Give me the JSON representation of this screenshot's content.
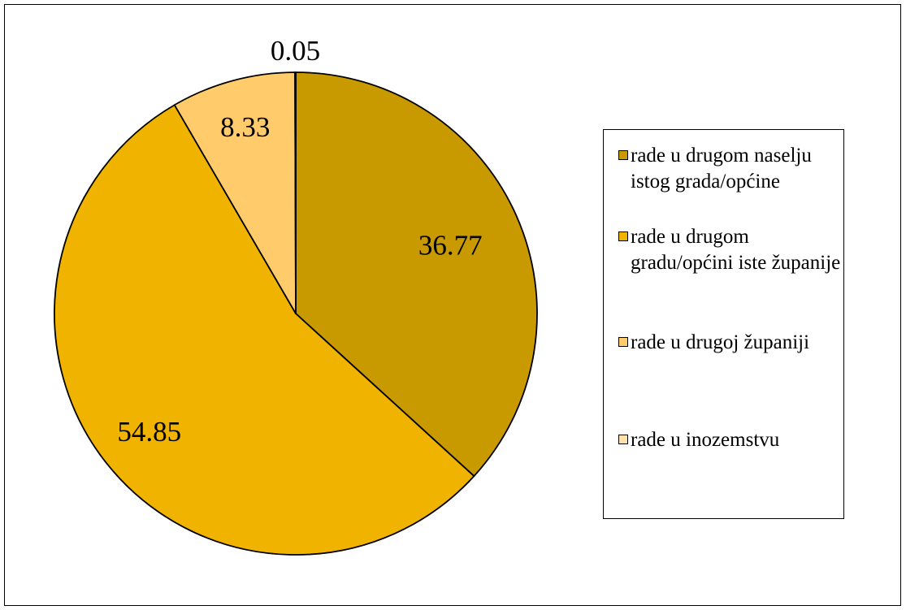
{
  "chart_data": {
    "type": "pie",
    "categories": [
      "rade u drugom naselju istog grada/općine",
      "rade u drugom gradu/općini iste županije",
      "rade u drugoj županiji",
      "rade u inozemstvu"
    ],
    "values": [
      36.77,
      54.85,
      8.33,
      0.05
    ],
    "value_labels": [
      "36.77",
      "54.85",
      "8.33",
      "0.05"
    ],
    "colors": [
      "#c99a00",
      "#f0b400",
      "#ffcb6b",
      "#ffe0a8"
    ],
    "start_angle_deg": 0,
    "direction": "clockwise",
    "legend_placement": "right",
    "title": ""
  }
}
